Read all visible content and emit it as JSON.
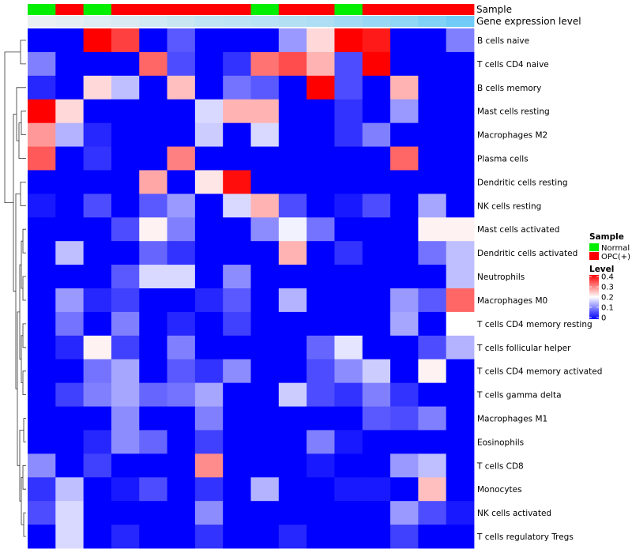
{
  "chart_data": {
    "type": "heatmap",
    "rows": [
      "B cells naive",
      "T cells CD4 naive",
      "B cells memory",
      "Mast cells resting",
      "Macrophages M2",
      "Plasma cells",
      "Dendritic cells resting",
      "NK cells resting",
      "Mast cells activated",
      "Dendritic cells activated",
      "Neutrophils",
      "Macrophages M0",
      "T cells CD4 memory resting",
      "T cells follicular helper",
      "T cells CD4 memory activated",
      "T cells gamma delta",
      "Macrophages M1",
      "Eosinophils",
      "T cells CD8",
      "Monocytes",
      "NK cells activated",
      "T cells regulatory  Tregs"
    ],
    "sample_groups": [
      "Normal",
      "OPC(+)",
      "Normal",
      "OPC(+)",
      "OPC(+)",
      "OPC(+)",
      "OPC(+)",
      "OPC(+)",
      "Normal",
      "OPC(+)",
      "OPC(+)",
      "Normal",
      "OPC(+)",
      "OPC(+)",
      "OPC(+)",
      "OPC(+)"
    ],
    "gene_expression_level": [
      0.05,
      0.08,
      0.12,
      0.15,
      0.2,
      0.25,
      0.3,
      0.32,
      0.35,
      0.38,
      0.42,
      0.48,
      0.55,
      0.6,
      0.7,
      0.8
    ],
    "values": [
      [
        0.0,
        0.0,
        0.4,
        0.35,
        0.0,
        0.07,
        0.0,
        0.0,
        0.0,
        0.12,
        0.23,
        0.4,
        0.38,
        0.0,
        0.0,
        0.1
      ],
      [
        0.1,
        0.0,
        0.0,
        0.0,
        0.32,
        0.06,
        0.0,
        0.04,
        0.31,
        0.34,
        0.26,
        0.06,
        0.4,
        0.0,
        0.0,
        0.0
      ],
      [
        0.03,
        0.0,
        0.23,
        0.15,
        0.0,
        0.25,
        0.0,
        0.09,
        0.07,
        0.0,
        0.4,
        0.06,
        0.0,
        0.26,
        0.0,
        0.0
      ],
      [
        0.4,
        0.23,
        0.0,
        0.0,
        0.0,
        0.0,
        0.17,
        0.26,
        0.26,
        0.0,
        0.0,
        0.04,
        0.0,
        0.12,
        0.0,
        0.0
      ],
      [
        0.28,
        0.14,
        0.03,
        0.0,
        0.0,
        0.0,
        0.16,
        0.0,
        0.17,
        0.0,
        0.0,
        0.04,
        0.1,
        0.0,
        0.0,
        0.0
      ],
      [
        0.33,
        0.0,
        0.04,
        0.0,
        0.0,
        0.3,
        0.0,
        0.0,
        0.0,
        0.0,
        0.0,
        0.0,
        0.0,
        0.32,
        0.0,
        0.0
      ],
      [
        0.0,
        0.0,
        0.0,
        0.0,
        0.27,
        0.0,
        0.22,
        0.39,
        0.0,
        0.0,
        0.0,
        0.0,
        0.0,
        0.0,
        0.0,
        0.0
      ],
      [
        0.02,
        0.0,
        0.06,
        0.0,
        0.07,
        0.12,
        0.0,
        0.17,
        0.26,
        0.06,
        0.0,
        0.02,
        0.06,
        0.0,
        0.13,
        0.0
      ],
      [
        0.0,
        0.0,
        0.0,
        0.06,
        0.21,
        0.1,
        0.0,
        0.0,
        0.11,
        0.19,
        0.09,
        0.0,
        0.0,
        0.0,
        0.21,
        0.21
      ],
      [
        0.0,
        0.15,
        0.0,
        0.0,
        0.08,
        0.04,
        0.0,
        0.0,
        0.0,
        0.26,
        0.0,
        0.04,
        0.0,
        0.0,
        0.09,
        0.15
      ],
      [
        0.0,
        0.0,
        0.0,
        0.07,
        0.17,
        0.17,
        0.0,
        0.11,
        0.0,
        0.0,
        0.0,
        0.0,
        0.0,
        0.0,
        0.0,
        0.15
      ],
      [
        0.0,
        0.12,
        0.03,
        0.05,
        0.0,
        0.0,
        0.03,
        0.07,
        0.0,
        0.14,
        0.0,
        0.0,
        0.0,
        0.12,
        0.07,
        0.32
      ],
      [
        0.0,
        0.09,
        0.0,
        0.1,
        0.0,
        0.03,
        0.0,
        0.05,
        0.0,
        0.0,
        0.0,
        0.0,
        0.0,
        0.13,
        0.0,
        0.2
      ],
      [
        0.0,
        0.03,
        0.21,
        0.05,
        0.0,
        0.1,
        0.0,
        0.0,
        0.0,
        0.0,
        0.08,
        0.18,
        0.0,
        0.0,
        0.06,
        0.14
      ],
      [
        0.0,
        0.0,
        0.09,
        0.13,
        0.0,
        0.07,
        0.04,
        0.11,
        0.0,
        0.0,
        0.06,
        0.11,
        0.16,
        0.0,
        0.21,
        0.0
      ],
      [
        0.0,
        0.05,
        0.1,
        0.13,
        0.08,
        0.09,
        0.13,
        0.0,
        0.0,
        0.16,
        0.06,
        0.04,
        0.1,
        0.04,
        0.0,
        0.0
      ],
      [
        0.0,
        0.0,
        0.0,
        0.11,
        0.0,
        0.0,
        0.1,
        0.0,
        0.0,
        0.0,
        0.0,
        0.0,
        0.07,
        0.06,
        0.1,
        0.0
      ],
      [
        0.0,
        0.0,
        0.03,
        0.11,
        0.08,
        0.0,
        0.05,
        0.0,
        0.0,
        0.0,
        0.1,
        0.02,
        0.0,
        0.0,
        0.0,
        0.0
      ],
      [
        0.11,
        0.0,
        0.05,
        0.0,
        0.0,
        0.0,
        0.29,
        0.0,
        0.0,
        0.0,
        0.02,
        0.0,
        0.0,
        0.12,
        0.15,
        0.0
      ],
      [
        0.04,
        0.15,
        0.0,
        0.02,
        0.06,
        0.0,
        0.04,
        0.0,
        0.14,
        0.0,
        0.0,
        0.02,
        0.02,
        0.0,
        0.25,
        0.0
      ],
      [
        0.06,
        0.17,
        0.0,
        0.0,
        0.0,
        0.0,
        0.11,
        0.0,
        0.0,
        0.0,
        0.0,
        0.0,
        0.0,
        0.12,
        0.06,
        0.02
      ],
      [
        0.0,
        0.17,
        0.0,
        0.03,
        0.0,
        0.0,
        0.04,
        0.0,
        0.0,
        0.03,
        0.0,
        0.0,
        0.0,
        0.05,
        0.0,
        0.0
      ]
    ],
    "legend": {
      "sample": {
        "title": "Sample",
        "items": [
          {
            "label": "Normal",
            "color": "#00ee00"
          },
          {
            "label": "OPC(+)",
            "color": "#ff0000"
          }
        ]
      },
      "level": {
        "title": "Level",
        "ticks": [
          "0.4",
          "0.3",
          "0.2",
          "0.1",
          "0"
        ],
        "range": [
          0,
          0.4
        ],
        "colors": {
          "low": "#0000ff",
          "mid": "#ffffff",
          "high": "#ff0000"
        }
      },
      "placement": "right"
    },
    "annotation_labels": {
      "sample": "Sample",
      "gene": "Gene expression level"
    },
    "gene_colors": {
      "low": "#f2f2f2",
      "high": "#4fc3f7"
    },
    "grid": false
  }
}
